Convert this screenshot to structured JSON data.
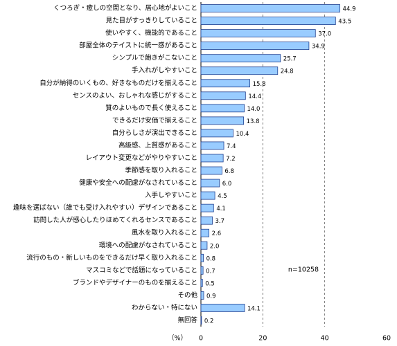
{
  "chart_data": {
    "type": "bar",
    "orientation": "horizontal",
    "categories": [
      "くつろぎ・癒しの空間となり、居心地がよいこと",
      "見た目がすっきりしていること",
      "使いやすく、機能的であること",
      "部屋全体のテイストに統一感があること",
      "シンプルで飽きがこないこと",
      "手入れがしやすいこと",
      "自分が納得のいくもの、好きなものだけを揃えること",
      "センスのよい、おしゃれな感じがすること",
      "質のよいもので長く使えること",
      "できるだけ安価で揃えること",
      "自分らしさが演出できること",
      "高級感、上質感があること",
      "レイアウト変更などがやりやすいこと",
      "季節感を取り入れること",
      "健康や安全への配慮がなされていること",
      "入手しやすいこと",
      "趣味を選ばない（誰でも受け入れやすい）デザインであること",
      "訪問した人が感心したりほめてくれるセンスであること",
      "風水を取り入れること",
      "環境への配慮がなされていること",
      "流行のもの・新しいものをできるだけ早く取り入れること",
      "マスコミなどで話題になっていること",
      "ブランドやデザイナーのものを揃えること",
      "その他",
      "わからない・特にない",
      "無回答"
    ],
    "values": [
      44.9,
      43.5,
      37.0,
      34.9,
      25.7,
      24.8,
      15.8,
      14.4,
      14.0,
      13.8,
      10.4,
      7.4,
      7.2,
      6.8,
      6.0,
      4.5,
      4.1,
      3.7,
      2.6,
      2.0,
      0.8,
      0.7,
      0.5,
      0.9,
      14.1,
      0.2
    ],
    "value_labels": [
      "44.9",
      "43.5",
      "37.0",
      "34.9",
      "25.7",
      "24.8",
      "15.8",
      "14.4",
      "14.0",
      "13.8",
      "10.4",
      "7.4",
      "7.2",
      "6.8",
      "6.0",
      "4.5",
      "4.1",
      "3.7",
      "2.6",
      "2.0",
      "0.8",
      "0.7",
      "0.5",
      "0.9",
      "14.1",
      "0.2"
    ],
    "color": "#99ccff",
    "xlim": [
      0,
      60
    ],
    "xticks": [
      0,
      20,
      40,
      60
    ],
    "grid": true,
    "xlabel": "（%）",
    "annotation": "n=10258"
  }
}
